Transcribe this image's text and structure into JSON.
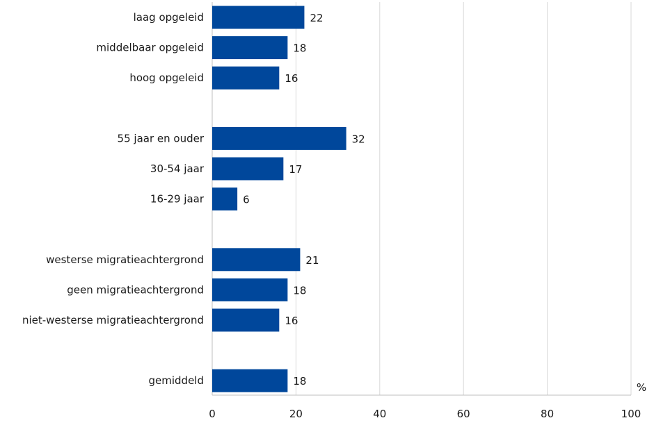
{
  "chart_data": {
    "type": "bar",
    "orientation": "horizontal",
    "categories": [
      "laag opgeleid",
      "middelbaar opgeleid",
      "hoog opgeleid",
      "",
      "55 jaar en ouder",
      "30-54 jaar",
      "16-29 jaar",
      "",
      "westerse migratieachtergrond",
      "geen migratieachtergrond",
      "niet-westerse migratieachtergrond",
      "",
      "gemiddeld"
    ],
    "values": [
      22,
      18,
      16,
      null,
      32,
      17,
      6,
      null,
      21,
      18,
      16,
      null,
      18
    ],
    "value_labels": [
      "22",
      "18",
      "16",
      "",
      "32",
      "17",
      "6",
      "",
      "21",
      "18",
      "16",
      "",
      "18"
    ],
    "xlim": [
      0,
      100
    ],
    "xticks": [
      0,
      20,
      40,
      60,
      80,
      100
    ],
    "unit": "%",
    "bar_color": "#00479b",
    "grid": true
  }
}
